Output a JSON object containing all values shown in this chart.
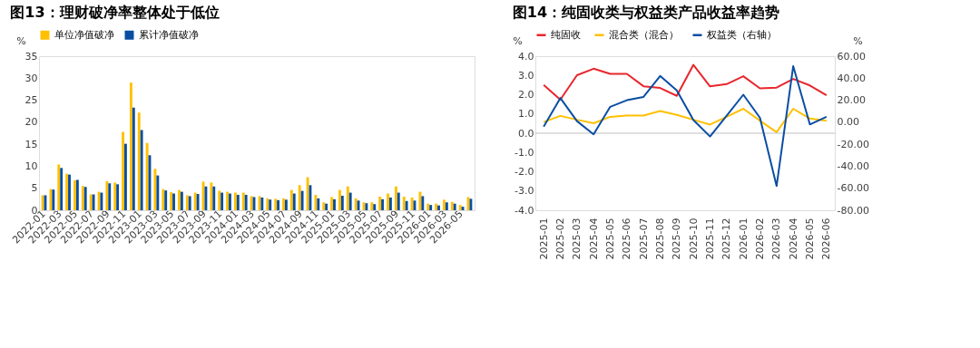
{
  "chart_data": [
    {
      "type": "bar",
      "title": "图13：理财破净率整体处于低位",
      "ylabel": "%",
      "categories": [
        "2022-01",
        null,
        "2022-03",
        null,
        "2022-05",
        null,
        "2022-07",
        null,
        "2022-09",
        null,
        "2022-11",
        null,
        "2023-01",
        null,
        "2023-03",
        null,
        "2023-05",
        null,
        "2023-07",
        null,
        "2023-09",
        null,
        "2023-11",
        null,
        "2024-01",
        null,
        "2024-03",
        null,
        "2024-05",
        null,
        "2024-07",
        null,
        "2024-09",
        null,
        "2024-11",
        null,
        "2025-01",
        null,
        "2025-03",
        null,
        "2025-05",
        null,
        "2025-07",
        null,
        "2025-09",
        null,
        "2025-11",
        null,
        "2026-01",
        null,
        "2026-03",
        null,
        "2026-05",
        null
      ],
      "series": [
        {
          "name": "单位净值破净",
          "color": "#ffc000",
          "values": [
            3.4,
            4.8,
            10.4,
            8.3,
            6.8,
            5.5,
            3.6,
            4.2,
            6.6,
            6.3,
            17.8,
            29.0,
            22.2,
            15.3,
            9.4,
            4.8,
            4.1,
            4.6,
            3.4,
            4.0,
            6.5,
            6.3,
            4.4,
            4.2,
            4.0,
            4.0,
            3.2,
            3.2,
            2.7,
            2.6,
            2.7,
            4.6,
            5.7,
            7.5,
            3.5,
            1.8,
            3.0,
            4.6,
            5.4,
            2.7,
            1.8,
            1.8,
            3.1,
            3.8,
            5.4,
            3.1,
            2.9,
            4.2,
            1.5,
            1.5,
            2.4,
            1.9,
            1.2,
            3.0
          ]
        },
        {
          "name": "累计净值破净",
          "color": "#0a4ea2",
          "values": [
            3.4,
            4.7,
            9.6,
            8.1,
            6.9,
            5.3,
            3.6,
            4.0,
            6.1,
            5.9,
            15.1,
            23.3,
            18.2,
            12.5,
            7.9,
            4.5,
            3.8,
            4.2,
            3.2,
            3.7,
            5.4,
            5.4,
            4.0,
            3.8,
            3.5,
            3.5,
            3.0,
            2.9,
            2.4,
            2.3,
            2.4,
            3.8,
            4.4,
            5.7,
            2.7,
            1.5,
            2.5,
            3.3,
            4.0,
            2.2,
            1.6,
            1.4,
            2.5,
            2.9,
            4.0,
            2.1,
            2.2,
            3.2,
            1.2,
            1.1,
            1.8,
            1.5,
            0.8,
            2.6
          ]
        }
      ],
      "ylim": [
        0,
        35
      ],
      "yticks": [
        0,
        5,
        10,
        15,
        20,
        25,
        30,
        35
      ],
      "grid": false,
      "legend": "top"
    },
    {
      "type": "line",
      "title": "图14：纯固收类与权益类产品收益率趋势",
      "ylabel": "%",
      "y2label": "%",
      "categories": [
        "2025-01",
        "2025-02",
        "2025-03",
        "2025-04",
        "2025-05",
        "2025-06",
        "2025-07",
        "2025-08",
        "2025-09",
        "2025-10",
        "2025-11",
        "2025-12",
        "2026-01",
        "2026-02",
        "2026-03",
        "2026-04",
        "2026-05",
        "2026-06"
      ],
      "series": [
        {
          "name": "纯固收",
          "color": "#e8262c",
          "values": [
            2.51,
            1.74,
            3.01,
            3.35,
            3.08,
            3.08,
            2.44,
            2.35,
            1.94,
            3.55,
            2.43,
            2.55,
            2.96,
            2.33,
            2.37,
            2.82,
            2.48,
            1.97
          ]
        },
        {
          "name": "混合类（混合）",
          "color": "#ffc000",
          "values": [
            0.58,
            0.9,
            0.7,
            0.52,
            0.85,
            0.92,
            0.92,
            1.15,
            0.95,
            0.7,
            0.45,
            0.85,
            1.27,
            0.65,
            0.05,
            1.27,
            0.76,
            0.65
          ]
        },
        {
          "name": "权益类（右轴）",
          "color": "#0a4ea2",
          "axis": "y2",
          "values": [
            -4,
            22,
            1,
            -11,
            14,
            20,
            23,
            42,
            29,
            2,
            -13,
            6,
            25,
            4,
            -58,
            51,
            -2,
            5
          ]
        }
      ],
      "ylim": [
        -4,
        4
      ],
      "yticks": [
        {
          "value": -4,
          "label": "-4.0"
        },
        {
          "value": -3,
          "label": "-3.0"
        },
        {
          "value": -2,
          "label": "-2.0"
        },
        {
          "value": -1,
          "label": "-1.0"
        },
        {
          "value": 0,
          "label": "0.0"
        },
        {
          "value": 1,
          "label": "1.0"
        },
        {
          "value": 2,
          "label": "2.0"
        },
        {
          "value": 3,
          "label": "3.0"
        },
        {
          "value": 4,
          "label": "4.0"
        }
      ],
      "y2lim": [
        -80,
        60
      ],
      "y2ticks": [
        {
          "value": -80,
          "label": "-80.00"
        },
        {
          "value": -60,
          "label": "-60.00"
        },
        {
          "value": -40,
          "label": "-40.00"
        },
        {
          "value": -20,
          "label": "-20.00"
        },
        {
          "value": 0,
          "label": "0.00"
        },
        {
          "value": 20,
          "label": "20.00"
        },
        {
          "value": 40,
          "label": "40.00"
        },
        {
          "value": 60,
          "label": "60.00"
        }
      ],
      "ref_lines": [
        {
          "axis": "y",
          "value": 0,
          "color": "#bfbfbf"
        }
      ],
      "grid": false,
      "legend": "top"
    }
  ]
}
